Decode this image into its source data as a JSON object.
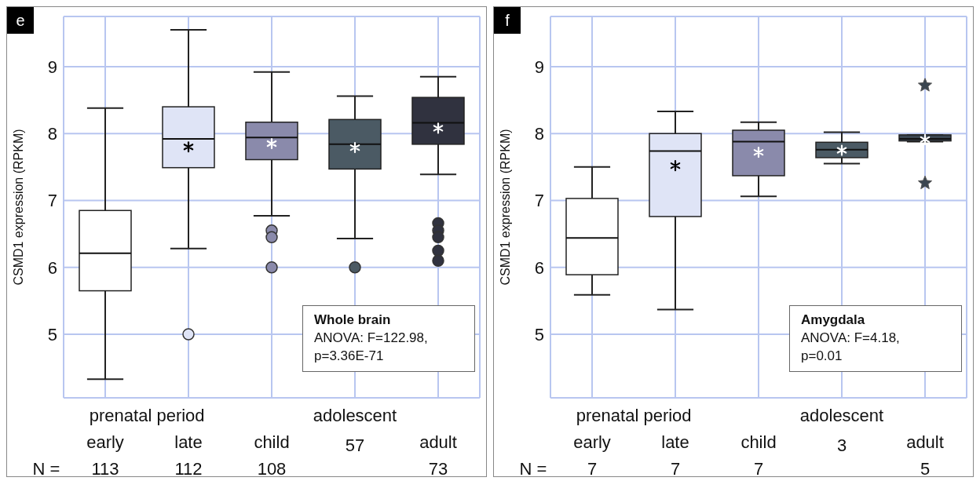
{
  "chart_data": [
    {
      "type": "box",
      "title": "e",
      "ylabel": "CSMD1 expression (RPKM)",
      "categories": [
        "early",
        "late",
        "child",
        "adolescent",
        "adult"
      ],
      "colors": [
        "#ffffff",
        "#dfe4f6",
        "#8a8aab",
        "#4b5a64",
        "#30323f"
      ],
      "marker": "circle",
      "grid": true,
      "ylim": [
        4.05,
        9.75
      ],
      "yticks": [
        5,
        6,
        7,
        8,
        9
      ],
      "boxes": [
        {
          "low": 4.33,
          "q1": 5.65,
          "median": 6.21,
          "q3": 6.85,
          "high": 8.38
        },
        {
          "low": 6.28,
          "q1": 7.49,
          "median": 7.92,
          "q3": 8.4,
          "high": 9.55,
          "mean": 7.8,
          "outliers": [
            5.0
          ]
        },
        {
          "low": 6.77,
          "q1": 7.61,
          "median": 7.94,
          "q3": 8.17,
          "high": 8.92,
          "mean": 7.85,
          "outliers": [
            6.55,
            6.45,
            6.0
          ]
        },
        {
          "low": 6.43,
          "q1": 7.47,
          "median": 7.84,
          "q3": 8.21,
          "high": 8.56,
          "mean": 7.79,
          "outliers": [
            6.0
          ]
        },
        {
          "low": 7.39,
          "q1": 7.84,
          "median": 8.16,
          "q3": 8.54,
          "high": 8.85,
          "mean": 8.08,
          "outliers": [
            6.66,
            6.55,
            6.45,
            6.25,
            6.1
          ]
        }
      ],
      "annotations": [
        "prenatal period",
        "N =",
        "113",
        "112",
        "108",
        "57",
        "73",
        "Whole brain",
        "ANOVA: F=122.98,",
        "p=3.36E-71"
      ]
    },
    {
      "type": "box",
      "title": "f",
      "ylabel": "CSMD1 expression (RPKM)",
      "categories": [
        "early",
        "late",
        "child",
        "adolescent",
        "adult"
      ],
      "colors": [
        "#ffffff",
        "#dfe4f6",
        "#8a8aab",
        "#4b5a64",
        "#3a4550"
      ],
      "marker": "star",
      "grid": true,
      "ylim": [
        4.05,
        9.75
      ],
      "yticks": [
        5,
        6,
        7,
        8,
        9
      ],
      "boxes": [
        {
          "low": 5.59,
          "q1": 5.89,
          "median": 6.44,
          "q3": 7.03,
          "high": 7.5
        },
        {
          "low": 5.37,
          "q1": 6.76,
          "median": 7.74,
          "q3": 8.0,
          "high": 8.33,
          "mean": 7.52
        },
        {
          "low": 7.06,
          "q1": 7.37,
          "median": 7.88,
          "q3": 8.05,
          "high": 8.17,
          "mean": 7.72
        },
        {
          "low": 7.55,
          "q1": 7.64,
          "median": 7.76,
          "q3": 7.87,
          "high": 8.02,
          "mean": 7.75
        },
        {
          "low": 7.88,
          "q1": 7.89,
          "median": 7.92,
          "q3": 7.98,
          "high": 7.98,
          "mean": 7.91,
          "outliers": [
            8.72,
            7.26
          ]
        }
      ],
      "annotations": [
        "prenatal period",
        "N =",
        "7",
        "7",
        "7",
        "3",
        "5",
        "Amygdala",
        "ANOVA: F=4.18,",
        "p=0.01"
      ]
    }
  ]
}
